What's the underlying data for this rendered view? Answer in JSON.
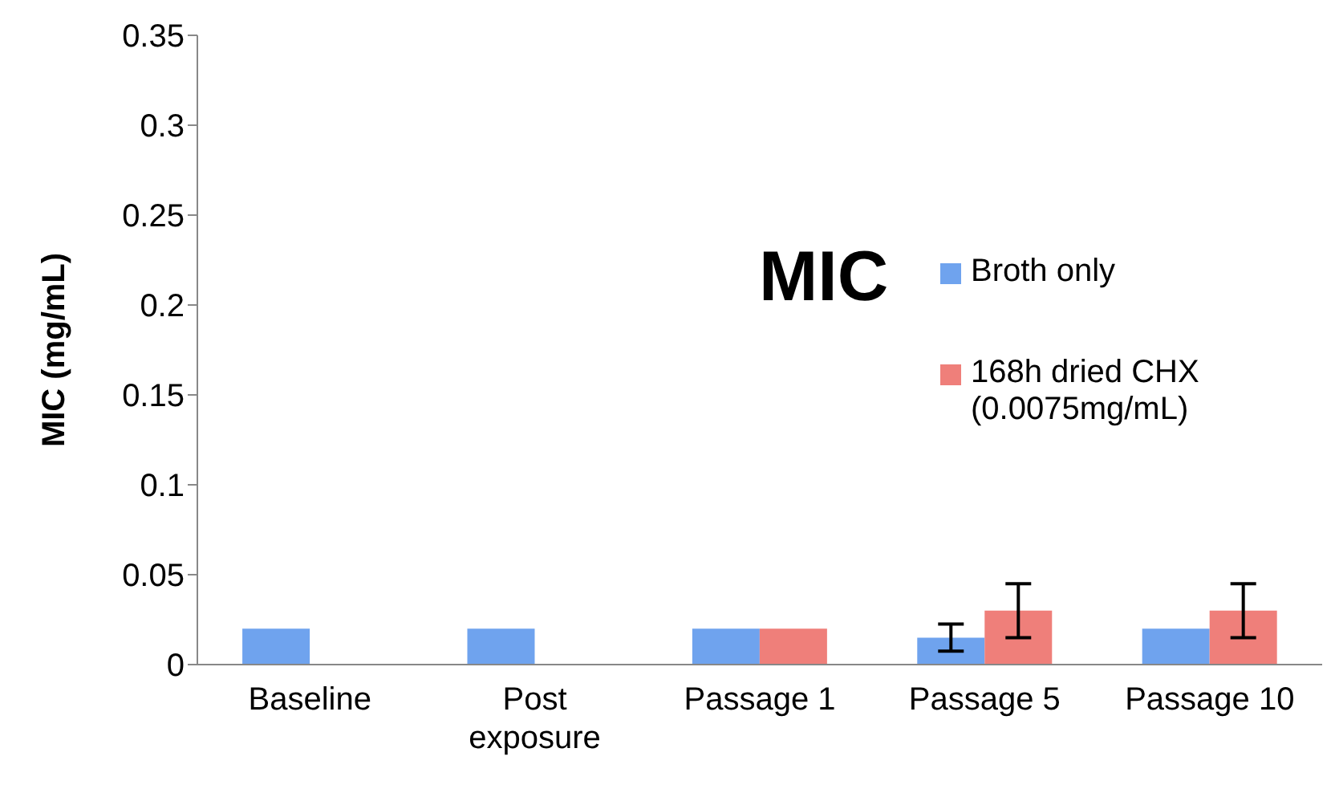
{
  "chart_data": {
    "type": "bar",
    "title": "MIC",
    "ylabel": "MIC (mg/mL)",
    "categories": [
      "Baseline",
      "Post exposure",
      "Passage 1",
      "Passage 5",
      "Passage 10"
    ],
    "series": [
      {
        "name": "Broth only",
        "color": "#6fa3ee",
        "values": [
          0.02,
          0.02,
          0.02,
          0.015,
          0.02
        ],
        "errors": [
          0,
          0,
          0,
          0.0075,
          0
        ]
      },
      {
        "name": "168h dried CHX (0.0075mg/mL)",
        "color": "#ef7f7a",
        "values": [
          null,
          null,
          0.02,
          0.03,
          0.03
        ],
        "errors": [
          null,
          null,
          0,
          0.015,
          0.015
        ]
      }
    ],
    "ylim": [
      0,
      0.35
    ],
    "yticks": [
      0,
      0.05,
      0.1,
      0.15,
      0.2,
      0.25,
      0.3,
      0.35
    ],
    "grid": false,
    "legend": "right"
  }
}
